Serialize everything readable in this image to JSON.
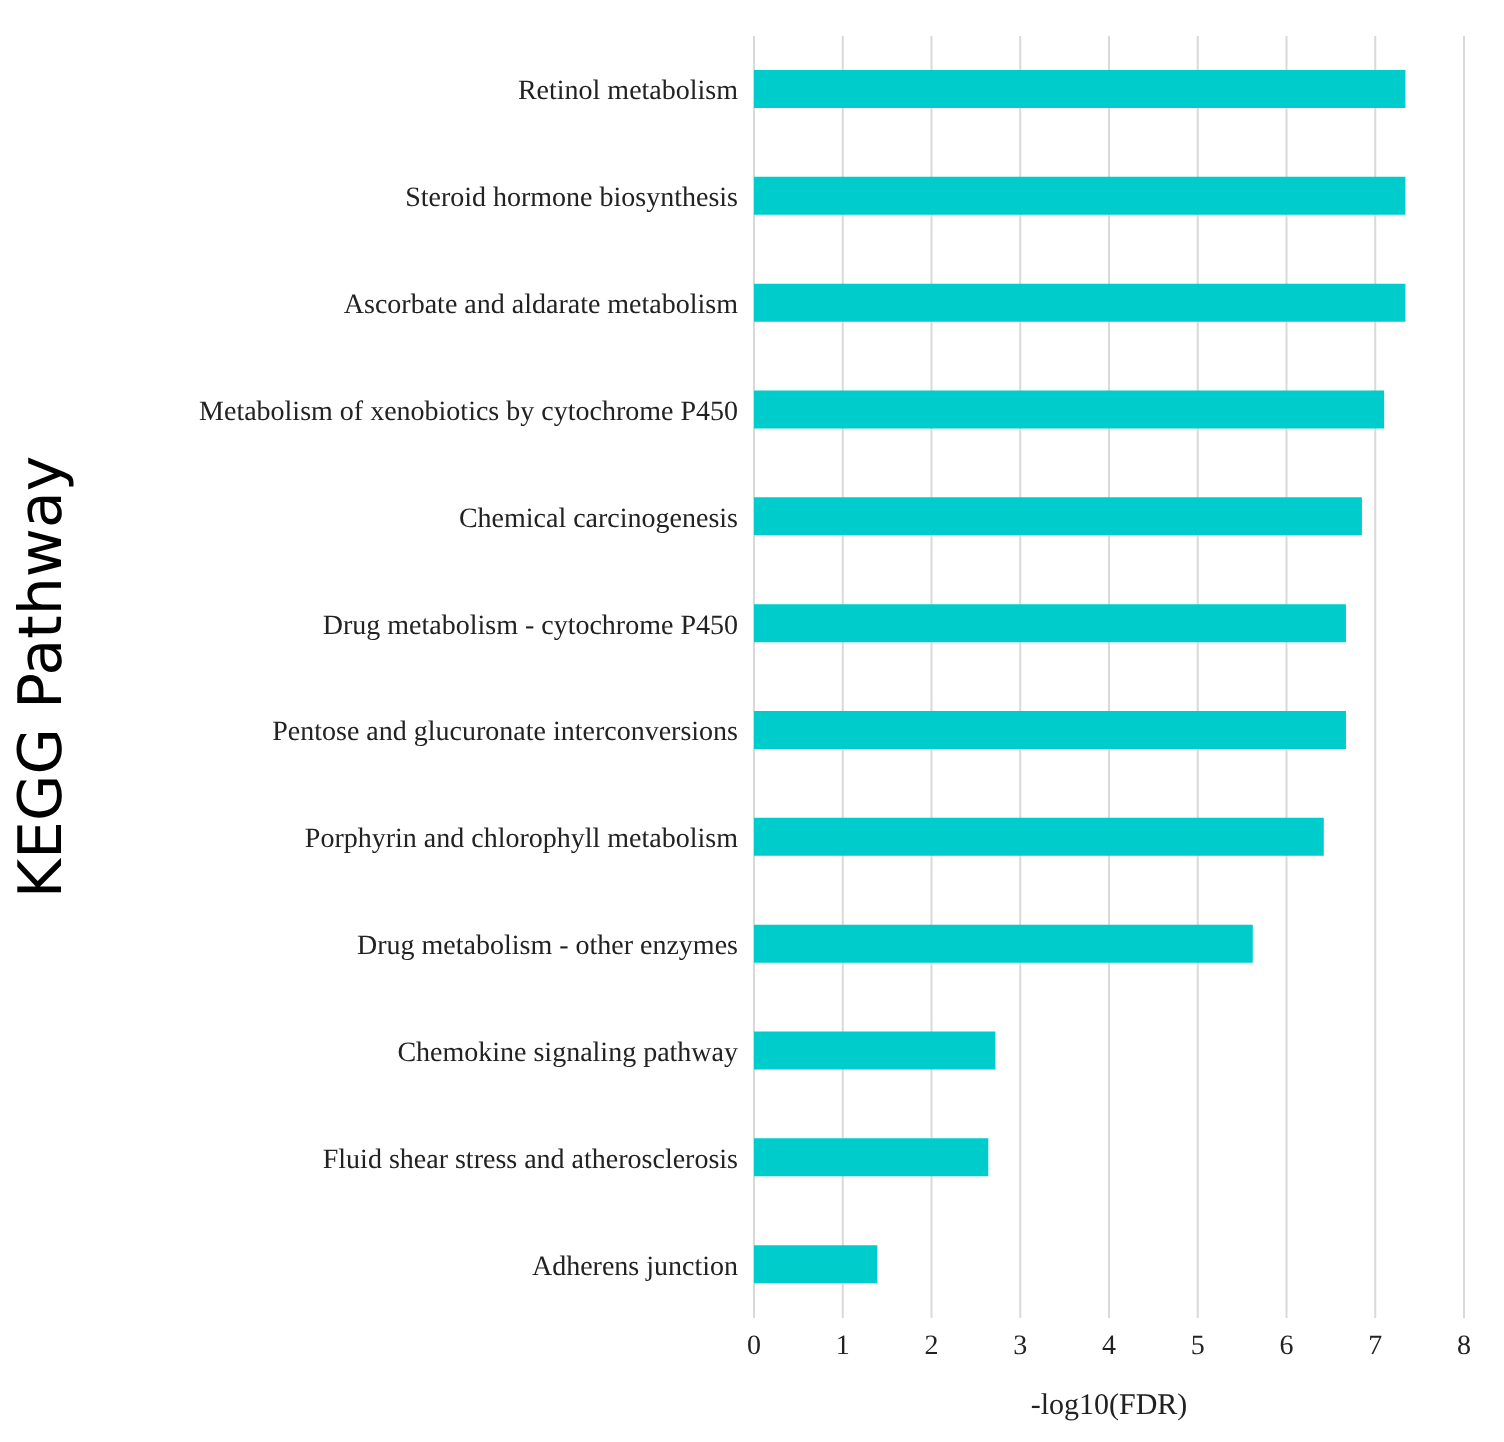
{
  "chart_data": {
    "type": "bar",
    "orientation": "horizontal",
    "xlabel": "-log10(FDR)",
    "ylabel": "KEGG Pathway",
    "categories": [
      "Retinol metabolism",
      "Steroid hormone biosynthesis",
      "Ascorbate and aldarate metabolism",
      "Metabolism of xenobiotics by cytochrome P450",
      "Chemical carcinogenesis",
      "Drug metabolism - cytochrome P450",
      "Pentose and glucuronate interconversions",
      "Porphyrin and chlorophyll metabolism",
      "Drug metabolism - other enzymes",
      "Chemokine signaling pathway",
      "Fluid shear stress and atherosclerosis",
      "Adherens junction"
    ],
    "values": [
      7.34,
      7.34,
      7.34,
      7.1,
      6.85,
      6.67,
      6.67,
      6.42,
      5.62,
      2.72,
      2.64,
      1.39
    ],
    "color": "#00cccc",
    "xlim": [
      0,
      8
    ],
    "xticks": [
      0,
      1,
      2,
      3,
      4,
      5,
      6,
      7,
      8
    ],
    "grid": "x"
  }
}
